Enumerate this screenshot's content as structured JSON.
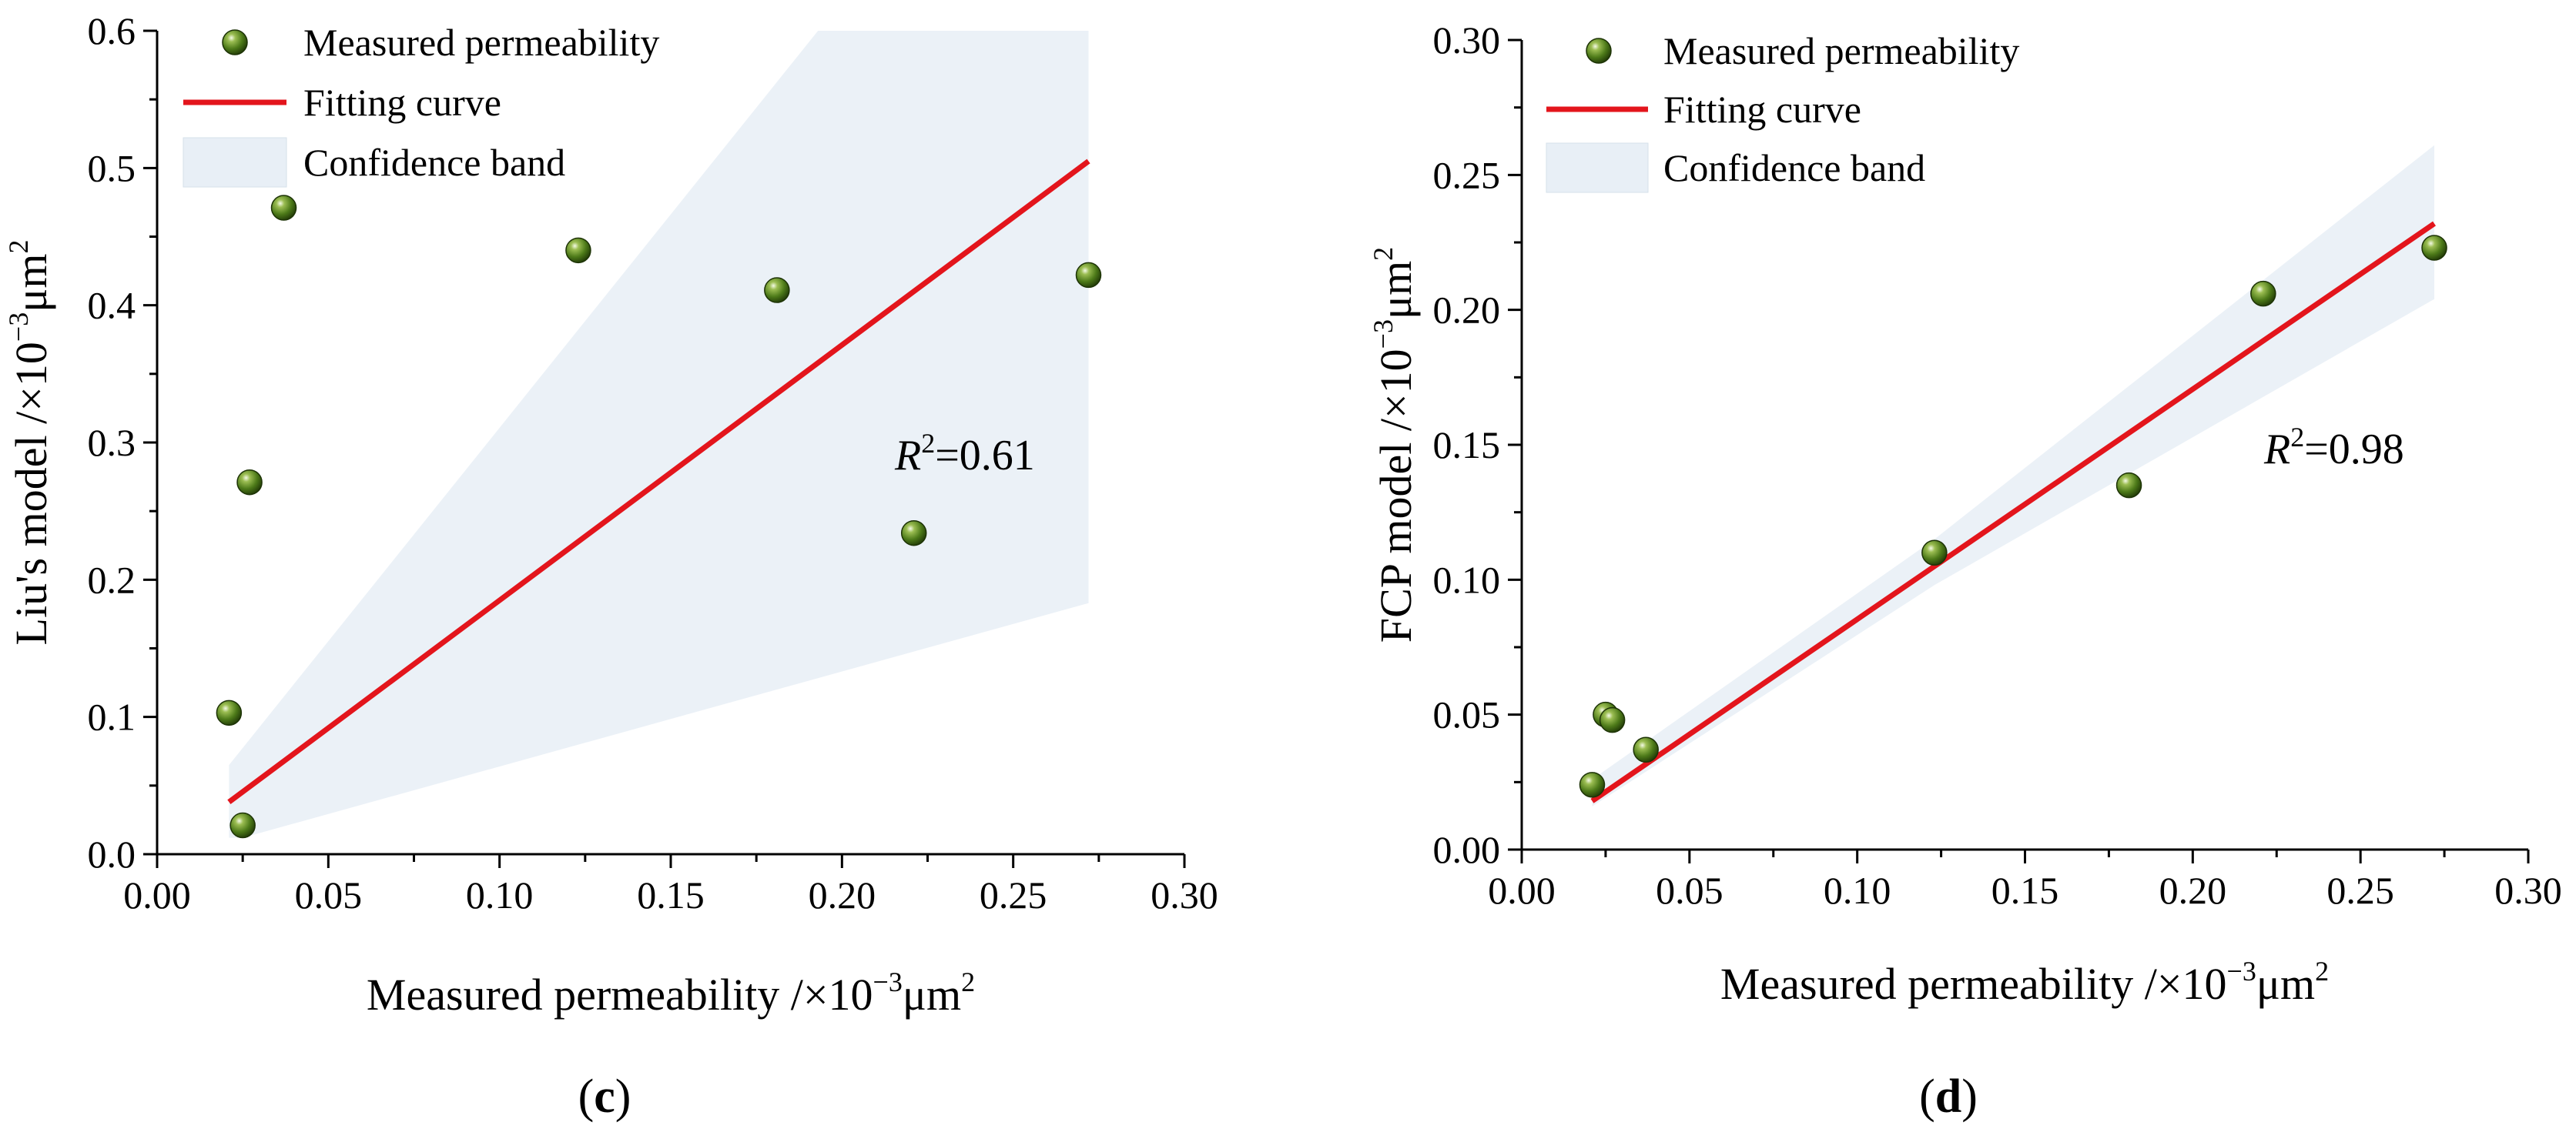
{
  "chart_data": [
    {
      "type": "scatter",
      "panel_label": {
        "open": "(",
        "letter": "c",
        "close": ")"
      },
      "xlabel": {
        "text": "Measured permeability /×10",
        "exp": "−3",
        "unit": "μm",
        "unit_exp": "2"
      },
      "ylabel": {
        "text": "Liu's model /×10",
        "exp": "−3",
        "unit": "μm",
        "unit_exp": "2"
      },
      "xlim": [
        0,
        0.3
      ],
      "ylim": [
        0,
        0.6
      ],
      "xticks": [
        "0.00",
        "0.05",
        "0.10",
        "0.15",
        "0.20",
        "0.25",
        "0.30"
      ],
      "yticks": [
        "0.0",
        "0.1",
        "0.2",
        "0.3",
        "0.4",
        "0.5",
        "0.6"
      ],
      "legend": {
        "points": "Measured permeability",
        "line": "Fitting curve",
        "band": "Confidence band",
        "position": "top-left"
      },
      "r2": {
        "symbol": "R",
        "exp": "2",
        "value": "=0.61"
      },
      "points": [
        {
          "x": 0.021,
          "y": 0.103
        },
        {
          "x": 0.025,
          "y": 0.021
        },
        {
          "x": 0.027,
          "y": 0.271
        },
        {
          "x": 0.037,
          "y": 0.471
        },
        {
          "x": 0.123,
          "y": 0.44
        },
        {
          "x": 0.181,
          "y": 0.411
        },
        {
          "x": 0.221,
          "y": 0.234
        },
        {
          "x": 0.272,
          "y": 0.422
        }
      ],
      "fit_line": {
        "x": [
          0.021,
          0.272
        ],
        "y": [
          0.038,
          0.505
        ]
      },
      "confidence_band": {
        "upper": [
          [
            0.021,
            0.065
          ],
          [
            0.193,
            0.6
          ],
          [
            0.272,
            0.6
          ]
        ],
        "lower": [
          [
            0.272,
            0.183
          ],
          [
            0.025,
            0.012
          ],
          [
            0.021,
            0.012
          ]
        ]
      }
    },
    {
      "type": "scatter",
      "panel_label": {
        "open": "(",
        "letter": "d",
        "close": ")"
      },
      "xlabel": {
        "text": "Measured permeability /×10",
        "exp": "−3",
        "unit": "μm",
        "unit_exp": "2"
      },
      "ylabel": {
        "text": "FCP model /×10",
        "exp": "−3",
        "unit": "μm",
        "unit_exp": "2"
      },
      "xlim": [
        0,
        0.3
      ],
      "ylim": [
        0,
        0.3
      ],
      "xticks": [
        "0.00",
        "0.05",
        "0.10",
        "0.15",
        "0.20",
        "0.25",
        "0.30"
      ],
      "yticks": [
        "0.00",
        "0.05",
        "0.10",
        "0.15",
        "0.20",
        "0.25",
        "0.30"
      ],
      "legend": {
        "points": "Measured permeability",
        "line": "Fitting curve",
        "band": "Confidence band",
        "position": "top-left"
      },
      "r2": {
        "symbol": "R",
        "exp": "2",
        "value": "=0.98"
      },
      "points": [
        {
          "x": 0.021,
          "y": 0.024
        },
        {
          "x": 0.025,
          "y": 0.05
        },
        {
          "x": 0.027,
          "y": 0.048
        },
        {
          "x": 0.037,
          "y": 0.037
        },
        {
          "x": 0.123,
          "y": 0.11
        },
        {
          "x": 0.181,
          "y": 0.135
        },
        {
          "x": 0.221,
          "y": 0.206
        },
        {
          "x": 0.272,
          "y": 0.223
        }
      ],
      "fit_line": {
        "x": [
          0.021,
          0.272
        ],
        "y": [
          0.018,
          0.232
        ]
      },
      "confidence_band": {
        "upper": [
          [
            0.021,
            0.026
          ],
          [
            0.123,
            0.115
          ],
          [
            0.272,
            0.261
          ]
        ],
        "lower": [
          [
            0.272,
            0.204
          ],
          [
            0.123,
            0.098
          ],
          [
            0.021,
            0.016
          ]
        ]
      }
    }
  ]
}
